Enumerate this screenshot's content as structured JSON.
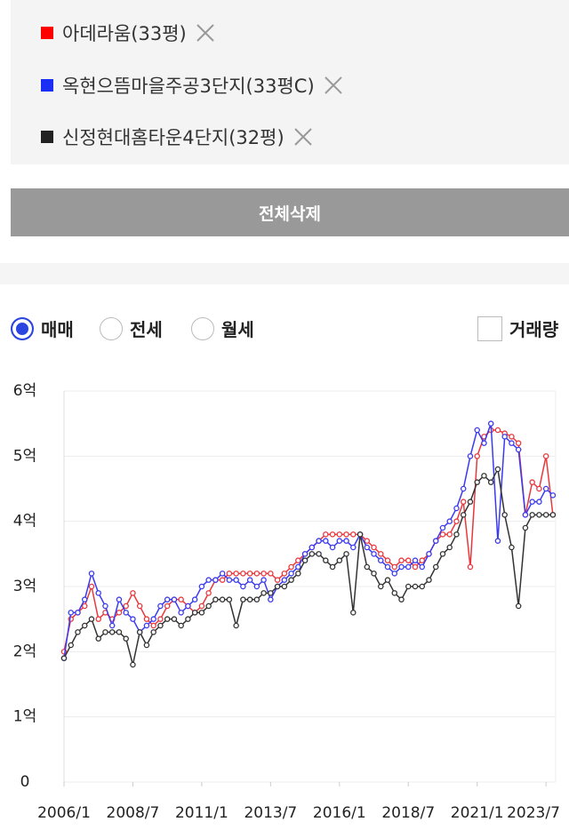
{
  "filters_note": null,
  "delete_all": "전체삭제",
  "trade_types": [
    "매매",
    "전세",
    "월세"
  ],
  "volume_toggle": "거래량",
  "chart_data": {
    "type": "line",
    "x": [
      2006,
      2006.25,
      2006.5,
      2006.75,
      2007,
      2007.25,
      2007.5,
      2007.75,
      2008,
      2008.25,
      2008.5,
      2008.75,
      2009,
      2009.25,
      2009.5,
      2009.75,
      2010,
      2010.25,
      2010.5,
      2010.75,
      2011,
      2011.25,
      2011.5,
      2011.75,
      2012,
      2012.25,
      2012.5,
      2012.75,
      2013,
      2013.25,
      2013.5,
      2013.75,
      2014,
      2014.25,
      2014.5,
      2014.75,
      2015,
      2015.25,
      2015.5,
      2015.75,
      2016,
      2016.25,
      2016.5,
      2016.75,
      2017,
      2017.25,
      2017.5,
      2017.75,
      2018,
      2018.25,
      2018.5,
      2018.75,
      2019,
      2019.25,
      2019.5,
      2019.75,
      2020,
      2020.25,
      2020.5,
      2020.75,
      2021,
      2021.25,
      2021.5,
      2021.75,
      2022,
      2022.25,
      2022.5,
      2022.75,
      2023,
      2023.25,
      2023.5,
      2023.75
    ],
    "series": [
      {
        "name": "아데라움(33평)",
        "color": "#e8383d",
        "values": [
          2.0,
          2.5,
          2.6,
          2.7,
          3.0,
          2.5,
          2.6,
          2.5,
          2.6,
          2.7,
          2.9,
          2.7,
          2.5,
          2.4,
          2.5,
          2.7,
          2.8,
          2.8,
          2.7,
          2.6,
          2.7,
          2.9,
          3.1,
          3.1,
          3.2,
          3.2,
          3.2,
          3.2,
          3.2,
          3.2,
          3.2,
          3.1,
          3.2,
          3.3,
          3.4,
          3.5,
          3.6,
          3.7,
          3.8,
          3.8,
          3.8,
          3.8,
          3.8,
          3.8,
          3.7,
          3.6,
          3.5,
          3.4,
          3.3,
          3.4,
          3.4,
          3.3,
          3.4,
          3.5,
          3.7,
          3.8,
          3.8,
          4.0,
          4.3,
          3.3,
          5.0,
          5.3,
          5.4,
          5.4,
          5.35,
          5.3,
          5.2,
          4.1,
          4.6,
          4.5,
          5.0,
          4.1
        ]
      },
      {
        "name": "옥현으뜸마을주공3단지(33평C)",
        "color": "#3a3af0",
        "values": [
          1.9,
          2.6,
          2.6,
          2.8,
          3.2,
          2.9,
          2.7,
          2.4,
          2.8,
          2.6,
          2.5,
          2.3,
          2.4,
          2.5,
          2.7,
          2.8,
          2.8,
          2.6,
          2.7,
          2.8,
          3.0,
          3.1,
          3.1,
          3.2,
          3.1,
          3.1,
          3.0,
          3.1,
          3.0,
          3.1,
          2.8,
          3.0,
          3.1,
          3.2,
          3.3,
          3.5,
          3.6,
          3.7,
          3.7,
          3.6,
          3.7,
          3.7,
          3.6,
          3.8,
          3.6,
          3.5,
          3.4,
          3.3,
          3.2,
          3.3,
          3.3,
          3.4,
          3.3,
          3.5,
          3.7,
          3.9,
          4.0,
          4.2,
          4.5,
          5.0,
          5.4,
          5.2,
          5.5,
          3.7,
          5.3,
          5.2,
          5.1,
          4.1,
          4.3,
          4.3,
          4.5,
          4.4
        ]
      },
      {
        "name": "신정현대홈타운4단지(32평)",
        "color": "#333333",
        "values": [
          1.9,
          2.1,
          2.3,
          2.4,
          2.5,
          2.2,
          2.3,
          2.3,
          2.3,
          2.2,
          1.8,
          2.3,
          2.1,
          2.3,
          2.4,
          2.5,
          2.5,
          2.4,
          2.5,
          2.6,
          2.6,
          2.7,
          2.8,
          2.8,
          2.8,
          2.4,
          2.8,
          2.8,
          2.8,
          2.9,
          2.9,
          3.0,
          3.0,
          3.1,
          3.2,
          3.4,
          3.5,
          3.5,
          3.4,
          3.3,
          3.4,
          3.5,
          2.6,
          3.8,
          3.3,
          3.2,
          3.0,
          3.1,
          2.9,
          2.8,
          3.0,
          3.0,
          3.0,
          3.1,
          3.3,
          3.5,
          3.6,
          3.8,
          4.1,
          4.3,
          4.6,
          4.7,
          4.6,
          4.8,
          4.1,
          3.6,
          2.7,
          3.9,
          4.1,
          4.1,
          4.1,
          4.1
        ]
      }
    ],
    "xlim": [
      2006,
      2023.85
    ],
    "xticks": [
      {
        "value": 2006,
        "label": "2006/1"
      },
      {
        "value": 2008.5,
        "label": "2008/7"
      },
      {
        "value": 2011,
        "label": "2011/1"
      },
      {
        "value": 2013.5,
        "label": "2013/7"
      },
      {
        "value": 2016,
        "label": "2016/1"
      },
      {
        "value": 2018.5,
        "label": "2018/7"
      },
      {
        "value": 2021,
        "label": "2021/1"
      },
      {
        "value": 2023.5,
        "label": "2023/7"
      }
    ],
    "ylim": [
      0,
      6
    ],
    "yticks": [
      0,
      {
        "value": 1,
        "label": "1억"
      },
      {
        "value": 2,
        "label": "2억"
      },
      {
        "value": 3,
        "label": "3억"
      },
      {
        "value": 4,
        "label": "4억"
      },
      {
        "value": 5,
        "label": "5억"
      },
      {
        "value": 6,
        "label": "6억"
      }
    ],
    "grid": true
  }
}
